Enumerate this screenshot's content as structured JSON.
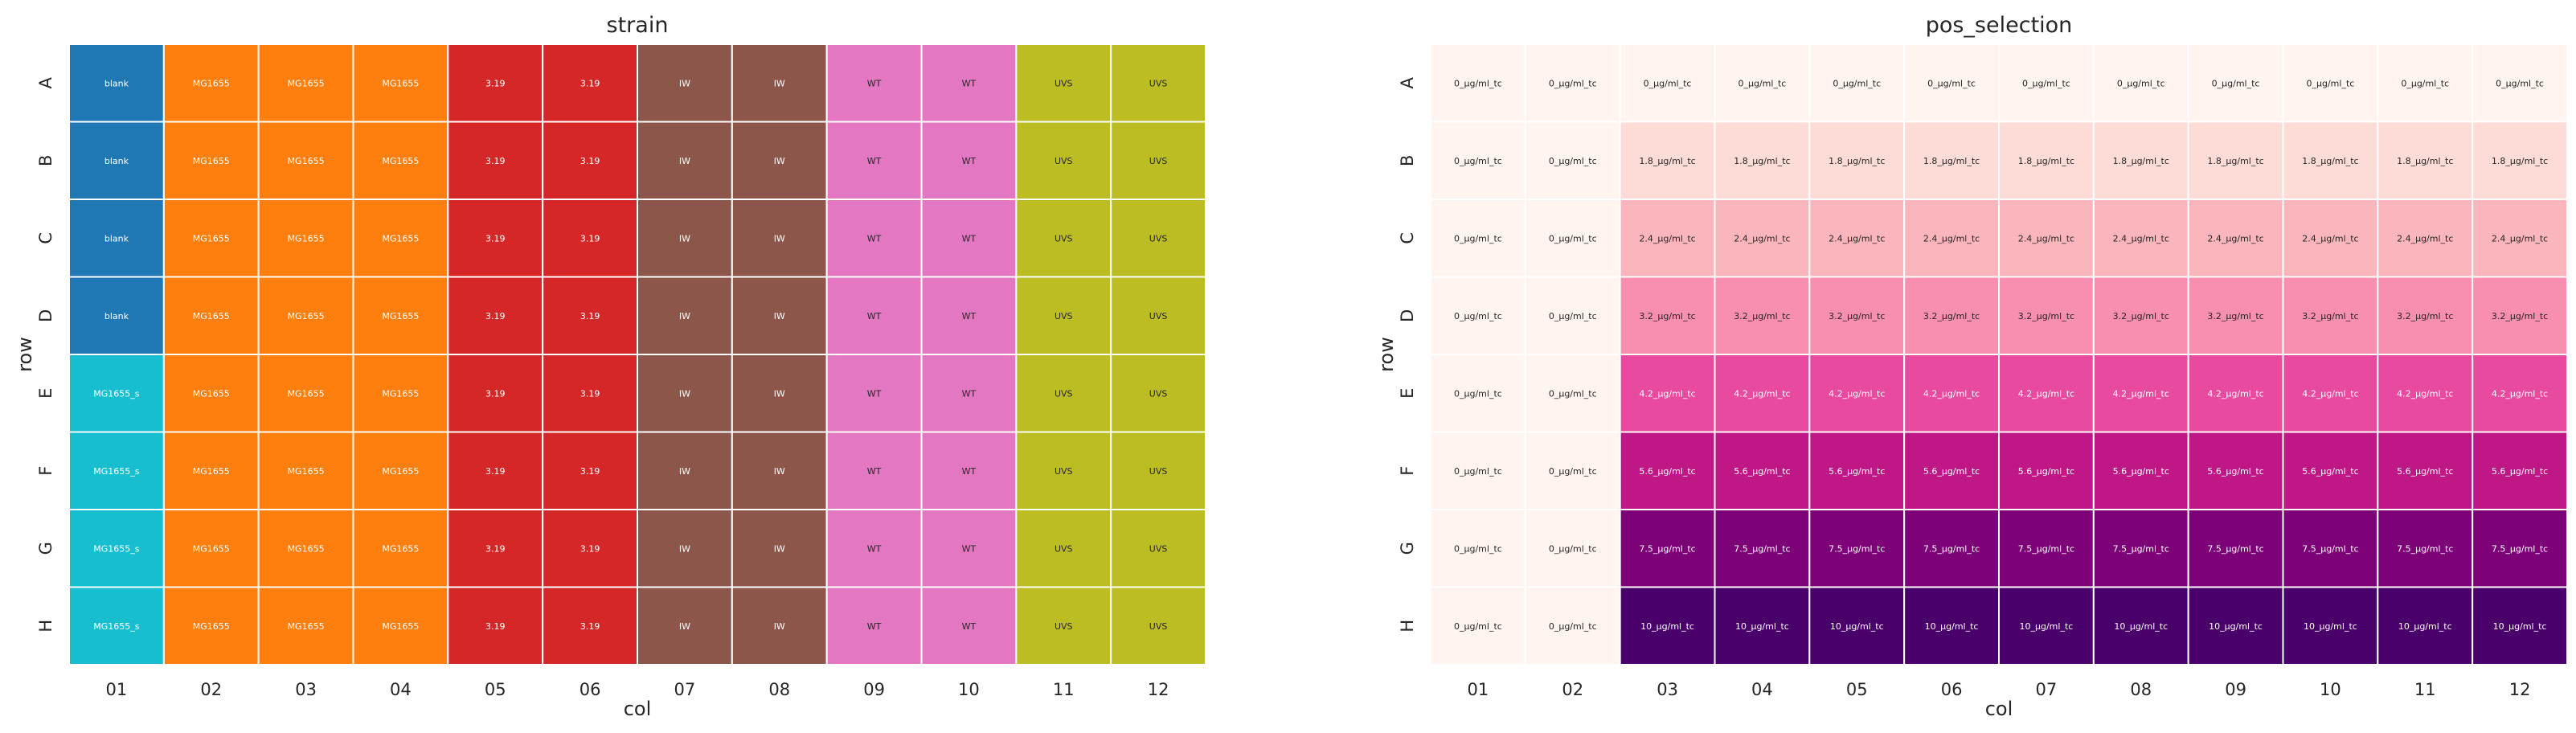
{
  "chart_data": [
    {
      "type": "heatmap",
      "title": "strain",
      "xlabel": "col",
      "ylabel": "row",
      "x_categories": [
        "01",
        "02",
        "03",
        "04",
        "05",
        "06",
        "07",
        "08",
        "09",
        "10",
        "11",
        "12"
      ],
      "y_categories": [
        "A",
        "B",
        "C",
        "D",
        "E",
        "F",
        "G",
        "H"
      ],
      "grid": true,
      "legend": "none",
      "category_colors": {
        "blank": "#1f77b4",
        "MG1655": "#ff7f0e",
        "3.19": "#d62728",
        "IW": "#8c564b",
        "WT": "#e377c2",
        "UVS": "#bcbd22",
        "MG1655_s": "#17becf"
      },
      "values": [
        [
          "blank",
          "MG1655",
          "MG1655",
          "MG1655",
          "3.19",
          "3.19",
          "IW",
          "IW",
          "WT",
          "WT",
          "UVS",
          "UVS"
        ],
        [
          "blank",
          "MG1655",
          "MG1655",
          "MG1655",
          "3.19",
          "3.19",
          "IW",
          "IW",
          "WT",
          "WT",
          "UVS",
          "UVS"
        ],
        [
          "blank",
          "MG1655",
          "MG1655",
          "MG1655",
          "3.19",
          "3.19",
          "IW",
          "IW",
          "WT",
          "WT",
          "UVS",
          "UVS"
        ],
        [
          "blank",
          "MG1655",
          "MG1655",
          "MG1655",
          "3.19",
          "3.19",
          "IW",
          "IW",
          "WT",
          "WT",
          "UVS",
          "UVS"
        ],
        [
          "MG1655_s",
          "MG1655",
          "MG1655",
          "MG1655",
          "3.19",
          "3.19",
          "IW",
          "IW",
          "WT",
          "WT",
          "UVS",
          "UVS"
        ],
        [
          "MG1655_s",
          "MG1655",
          "MG1655",
          "MG1655",
          "3.19",
          "3.19",
          "IW",
          "IW",
          "WT",
          "WT",
          "UVS",
          "UVS"
        ],
        [
          "MG1655_s",
          "MG1655",
          "MG1655",
          "MG1655",
          "3.19",
          "3.19",
          "IW",
          "IW",
          "WT",
          "WT",
          "UVS",
          "UVS"
        ],
        [
          "MG1655_s",
          "MG1655",
          "MG1655",
          "MG1655",
          "3.19",
          "3.19",
          "IW",
          "IW",
          "WT",
          "WT",
          "UVS",
          "UVS"
        ]
      ]
    },
    {
      "type": "heatmap",
      "title": "pos_selection",
      "xlabel": "col",
      "ylabel": "row",
      "x_categories": [
        "01",
        "02",
        "03",
        "04",
        "05",
        "06",
        "07",
        "08",
        "09",
        "10",
        "11",
        "12"
      ],
      "y_categories": [
        "A",
        "B",
        "C",
        "D",
        "E",
        "F",
        "G",
        "H"
      ],
      "grid": true,
      "legend": "none",
      "category_colors": {
        "0_µg/ml_tc": "#fff4f0",
        "1.8_µg/ml_tc": "#fddcd7",
        "2.4_µg/ml_tc": "#fbb5bc",
        "3.2_µg/ml_tc": "#f88eb0",
        "4.2_µg/ml_tc": "#e84aa0",
        "5.6_µg/ml_tc": "#c01787",
        "7.5_µg/ml_tc": "#7d0277",
        "10_µg/ml_tc": "#49006a"
      },
      "values": [
        [
          "0_µg/ml_tc",
          "0_µg/ml_tc",
          "0_µg/ml_tc",
          "0_µg/ml_tc",
          "0_µg/ml_tc",
          "0_µg/ml_tc",
          "0_µg/ml_tc",
          "0_µg/ml_tc",
          "0_µg/ml_tc",
          "0_µg/ml_tc",
          "0_µg/ml_tc",
          "0_µg/ml_tc"
        ],
        [
          "0_µg/ml_tc",
          "0_µg/ml_tc",
          "1.8_µg/ml_tc",
          "1.8_µg/ml_tc",
          "1.8_µg/ml_tc",
          "1.8_µg/ml_tc",
          "1.8_µg/ml_tc",
          "1.8_µg/ml_tc",
          "1.8_µg/ml_tc",
          "1.8_µg/ml_tc",
          "1.8_µg/ml_tc",
          "1.8_µg/ml_tc"
        ],
        [
          "0_µg/ml_tc",
          "0_µg/ml_tc",
          "2.4_µg/ml_tc",
          "2.4_µg/ml_tc",
          "2.4_µg/ml_tc",
          "2.4_µg/ml_tc",
          "2.4_µg/ml_tc",
          "2.4_µg/ml_tc",
          "2.4_µg/ml_tc",
          "2.4_µg/ml_tc",
          "2.4_µg/ml_tc",
          "2.4_µg/ml_tc"
        ],
        [
          "0_µg/ml_tc",
          "0_µg/ml_tc",
          "3.2_µg/ml_tc",
          "3.2_µg/ml_tc",
          "3.2_µg/ml_tc",
          "3.2_µg/ml_tc",
          "3.2_µg/ml_tc",
          "3.2_µg/ml_tc",
          "3.2_µg/ml_tc",
          "3.2_µg/ml_tc",
          "3.2_µg/ml_tc",
          "3.2_µg/ml_tc"
        ],
        [
          "0_µg/ml_tc",
          "0_µg/ml_tc",
          "4.2_µg/ml_tc",
          "4.2_µg/ml_tc",
          "4.2_µg/ml_tc",
          "4.2_µg/ml_tc",
          "4.2_µg/ml_tc",
          "4.2_µg/ml_tc",
          "4.2_µg/ml_tc",
          "4.2_µg/ml_tc",
          "4.2_µg/ml_tc",
          "4.2_µg/ml_tc"
        ],
        [
          "0_µg/ml_tc",
          "0_µg/ml_tc",
          "5.6_µg/ml_tc",
          "5.6_µg/ml_tc",
          "5.6_µg/ml_tc",
          "5.6_µg/ml_tc",
          "5.6_µg/ml_tc",
          "5.6_µg/ml_tc",
          "5.6_µg/ml_tc",
          "5.6_µg/ml_tc",
          "5.6_µg/ml_tc",
          "5.6_µg/ml_tc"
        ],
        [
          "0_µg/ml_tc",
          "0_µg/ml_tc",
          "7.5_µg/ml_tc",
          "7.5_µg/ml_tc",
          "7.5_µg/ml_tc",
          "7.5_µg/ml_tc",
          "7.5_µg/ml_tc",
          "7.5_µg/ml_tc",
          "7.5_µg/ml_tc",
          "7.5_µg/ml_tc",
          "7.5_µg/ml_tc",
          "7.5_µg/ml_tc"
        ],
        [
          "0_µg/ml_tc",
          "0_µg/ml_tc",
          "10_µg/ml_tc",
          "10_µg/ml_tc",
          "10_µg/ml_tc",
          "10_µg/ml_tc",
          "10_µg/ml_tc",
          "10_µg/ml_tc",
          "10_µg/ml_tc",
          "10_µg/ml_tc",
          "10_µg/ml_tc",
          "10_µg/ml_tc"
        ]
      ]
    }
  ]
}
